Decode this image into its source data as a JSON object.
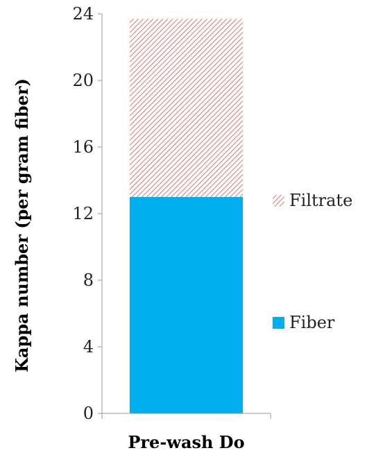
{
  "chart_data": {
    "type": "bar",
    "stacked": true,
    "categories": [
      "Pre-wash Do"
    ],
    "series": [
      {
        "name": "Fiber",
        "values": [
          13.0
        ],
        "color": "#00ADEF",
        "fill": "solid"
      },
      {
        "name": "Filtrate",
        "values": [
          10.7
        ],
        "color": "#D9534F",
        "fill": "diagonal-hatch"
      }
    ],
    "xlabel": "Pre-wash Do",
    "ylabel": "Kappa number (per gram fiber)",
    "ylim": [
      0,
      24
    ],
    "yticks": [
      0,
      4,
      8,
      12,
      16,
      20,
      24
    ],
    "ytick_labels": [
      "0",
      "4",
      "8",
      "12",
      "16",
      "20",
      "24"
    ],
    "grid": false,
    "legend": {
      "placement": "right",
      "entries_top_to_bottom": [
        "Filtrate",
        "Fiber"
      ]
    }
  }
}
